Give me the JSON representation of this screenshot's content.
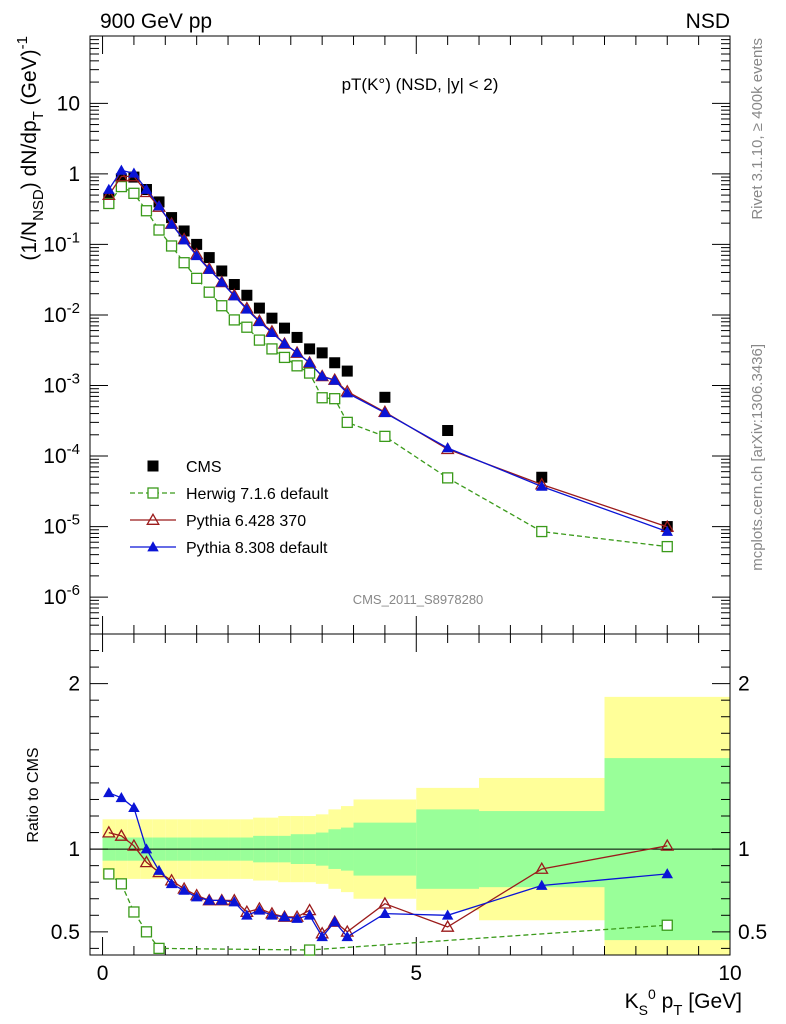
{
  "header": {
    "left": "900 GeV pp",
    "right": "NSD",
    "plot_title": "pT(K°) (NSD, |y| < 2)",
    "side_top": "Rivet 3.1.10, ≥ 400k events",
    "side_bottom": "mcplots.cern.ch [arXiv:1306.3436]",
    "analysis_id": "CMS_2011_S8978280"
  },
  "colors": {
    "cms": "#000000",
    "herwig": "#3a9a1a",
    "pythia6": "#9b1b1b",
    "pythia8": "#0a14d6",
    "band_stat": "#99ff99",
    "band_total": "#ffff99"
  },
  "chart_data": [
    {
      "type": "scatter",
      "panel": "main",
      "ylabel": "(1/N_NSD) dN/dp_T (GeV)^-1",
      "yscale": "log",
      "ylim": [
        3e-07,
        90
      ],
      "xlim": [
        -0.2,
        10
      ],
      "y_tick_labels": [
        "10^-6",
        "10^-5",
        "10^-4",
        "10^-3",
        "10^-2",
        "10^-1",
        "1",
        "10"
      ],
      "legend": {
        "position": "bottom-left",
        "entries": [
          "CMS",
          "Herwig 7.1.6 default",
          "Pythia 6.428 370",
          "Pythia 8.308 default"
        ]
      },
      "series": [
        {
          "name": "CMS",
          "marker": "square-filled",
          "x": [
            0.1,
            0.3,
            0.5,
            0.7,
            0.9,
            1.1,
            1.3,
            1.5,
            1.7,
            1.9,
            2.1,
            2.3,
            2.5,
            2.7,
            2.9,
            3.1,
            3.3,
            3.5,
            3.7,
            3.9,
            4.5,
            5.5,
            7.0,
            9.0
          ],
          "y": [
            0.45,
            0.85,
            0.9,
            0.6,
            0.4,
            0.24,
            0.155,
            0.1,
            0.065,
            0.042,
            0.027,
            0.019,
            0.0125,
            0.009,
            0.0065,
            0.0048,
            0.0033,
            0.0029,
            0.0021,
            0.0016,
            0.00068,
            0.00023,
            5e-05,
            1e-05
          ]
        },
        {
          "name": "Herwig 7.1.6 default",
          "marker": "square-open",
          "line": "dashed",
          "x": [
            0.1,
            0.3,
            0.5,
            0.7,
            0.9,
            1.1,
            1.3,
            1.5,
            1.7,
            1.9,
            2.1,
            2.3,
            2.5,
            2.7,
            2.9,
            3.1,
            3.3,
            3.5,
            3.7,
            3.9,
            4.5,
            5.5,
            7.0,
            9.0
          ],
          "y": [
            0.38,
            0.66,
            0.53,
            0.3,
            0.16,
            0.095,
            0.055,
            0.033,
            0.021,
            0.0135,
            0.0085,
            0.0067,
            0.0044,
            0.0033,
            0.0025,
            0.0019,
            0.0015,
            0.00067,
            0.00065,
            0.0003,
            0.00019,
            4.9e-05,
            8.5e-06,
            5.2e-06
          ]
        },
        {
          "name": "Pythia 6.428 370",
          "marker": "triangle-open",
          "line": "solid",
          "x": [
            0.1,
            0.3,
            0.5,
            0.7,
            0.9,
            1.1,
            1.3,
            1.5,
            1.7,
            1.9,
            2.1,
            2.3,
            2.5,
            2.7,
            2.9,
            3.1,
            3.3,
            3.5,
            3.7,
            3.9,
            4.5,
            5.5,
            7.0,
            9.0
          ],
          "y": [
            0.5,
            0.92,
            0.92,
            0.55,
            0.34,
            0.195,
            0.118,
            0.072,
            0.045,
            0.029,
            0.019,
            0.0124,
            0.0082,
            0.0058,
            0.0039,
            0.0029,
            0.0021,
            0.00135,
            0.0012,
            0.00082,
            0.00042,
            0.000125,
            3.95e-05,
            9.9e-06
          ]
        },
        {
          "name": "Pythia 8.308 default",
          "marker": "triangle-filled",
          "line": "solid",
          "x": [
            0.1,
            0.3,
            0.5,
            0.7,
            0.9,
            1.1,
            1.3,
            1.5,
            1.7,
            1.9,
            2.1,
            2.3,
            2.5,
            2.7,
            2.9,
            3.1,
            3.3,
            3.5,
            3.7,
            3.9,
            4.5,
            5.5,
            7.0,
            9.0
          ],
          "y": [
            0.6,
            1.12,
            1.02,
            0.6,
            0.35,
            0.193,
            0.115,
            0.069,
            0.044,
            0.029,
            0.0185,
            0.012,
            0.008,
            0.0056,
            0.0039,
            0.0029,
            0.0021,
            0.00135,
            0.00118,
            0.00078,
            0.00041,
            0.00013,
            3.7e-05,
            8.5e-06
          ]
        }
      ]
    },
    {
      "type": "scatter",
      "panel": "ratio",
      "ylabel": "Ratio to CMS",
      "xlabel": "K_S^0 p_T [GeV]",
      "xlim": [
        -0.2,
        10
      ],
      "ylim": [
        0.36,
        2.3
      ],
      "x_tick_labels": [
        "0",
        "5",
        "10"
      ],
      "y_tick_labels": [
        "0.5",
        "1",
        "2"
      ],
      "reference_line": 1,
      "bands": {
        "edges": [
          0,
          0.2,
          0.4,
          0.6,
          0.8,
          1.0,
          1.2,
          1.4,
          1.6,
          1.8,
          2.0,
          2.2,
          2.4,
          2.6,
          2.8,
          3.0,
          3.2,
          3.4,
          3.6,
          3.8,
          4.0,
          5.0,
          6.0,
          8.0,
          10.0
        ],
        "stat": [
          0.07,
          0.07,
          0.07,
          0.07,
          0.07,
          0.07,
          0.07,
          0.07,
          0.07,
          0.07,
          0.07,
          0.07,
          0.08,
          0.08,
          0.08,
          0.09,
          0.09,
          0.1,
          0.12,
          0.13,
          0.16,
          0.24,
          0.23,
          0.55
        ],
        "total": [
          0.18,
          0.18,
          0.18,
          0.18,
          0.18,
          0.18,
          0.18,
          0.18,
          0.18,
          0.18,
          0.18,
          0.18,
          0.19,
          0.19,
          0.2,
          0.2,
          0.2,
          0.21,
          0.24,
          0.26,
          0.3,
          0.37,
          0.43,
          0.92
        ]
      },
      "series": [
        {
          "name": "Herwig 7.1.6 default",
          "marker": "square-open",
          "line": "dashed",
          "x": [
            0.1,
            0.3,
            0.5,
            0.7,
            0.9,
            3.3,
            9.0
          ],
          "y": [
            0.85,
            0.79,
            0.62,
            0.5,
            0.4,
            0.39,
            0.54
          ]
        },
        {
          "name": "Pythia 6.428 370",
          "marker": "triangle-open",
          "line": "solid",
          "x": [
            0.1,
            0.3,
            0.5,
            0.7,
            0.9,
            1.1,
            1.3,
            1.5,
            1.7,
            1.9,
            2.1,
            2.3,
            2.5,
            2.7,
            2.9,
            3.1,
            3.3,
            3.5,
            3.7,
            3.9,
            4.5,
            5.5,
            7.0,
            9.0
          ],
          "y": [
            1.1,
            1.08,
            1.02,
            0.92,
            0.86,
            0.81,
            0.76,
            0.72,
            0.69,
            0.69,
            0.69,
            0.62,
            0.64,
            0.61,
            0.59,
            0.59,
            0.63,
            0.49,
            0.56,
            0.5,
            0.67,
            0.53,
            0.88,
            1.02
          ]
        },
        {
          "name": "Pythia 8.308 default",
          "marker": "triangle-filled",
          "line": "solid",
          "x": [
            0.1,
            0.3,
            0.5,
            0.7,
            0.9,
            1.1,
            1.3,
            1.5,
            1.7,
            1.9,
            2.1,
            2.3,
            2.5,
            2.7,
            2.9,
            3.1,
            3.3,
            3.5,
            3.7,
            3.9,
            4.5,
            5.5,
            7.0,
            9.0
          ],
          "y": [
            1.34,
            1.31,
            1.25,
            1.0,
            0.87,
            0.79,
            0.75,
            0.71,
            0.69,
            0.69,
            0.68,
            0.6,
            0.63,
            0.6,
            0.59,
            0.58,
            0.6,
            0.47,
            0.56,
            0.47,
            0.61,
            0.6,
            0.78,
            0.85
          ]
        }
      ]
    }
  ]
}
